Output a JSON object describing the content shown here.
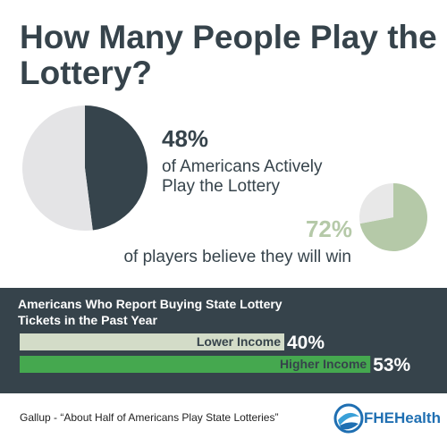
{
  "title": "How Many People Play the Lottery?",
  "chart_data": [
    {
      "type": "pie",
      "values": [
        48,
        52
      ],
      "value_labels": [
        "48%",
        null
      ],
      "colors": [
        "#36444c",
        "#e4e4e6"
      ],
      "annotation": "of Americans Actively Play the Lottery"
    },
    {
      "type": "pie",
      "values": [
        72,
        28
      ],
      "value_labels": [
        "72%",
        null
      ],
      "colors": [
        "#b5c9a8",
        "#e8e8e8"
      ],
      "annotation": "of players believe they will win"
    },
    {
      "type": "bar",
      "orientation": "horizontal",
      "title": "Americans Who Report Buying State Lottery Tickets in the Past Year",
      "categories": [
        "Lower Income",
        "Higher Income"
      ],
      "values": [
        40,
        53
      ],
      "value_labels": [
        "40%",
        "53%"
      ],
      "colors": [
        "#d3dcc8",
        "#45a84f"
      ],
      "xlim": [
        0,
        60
      ]
    }
  ],
  "source": "Gallup - “About Half of Americans Play State Lotteries”",
  "logo": "FHEHealth"
}
